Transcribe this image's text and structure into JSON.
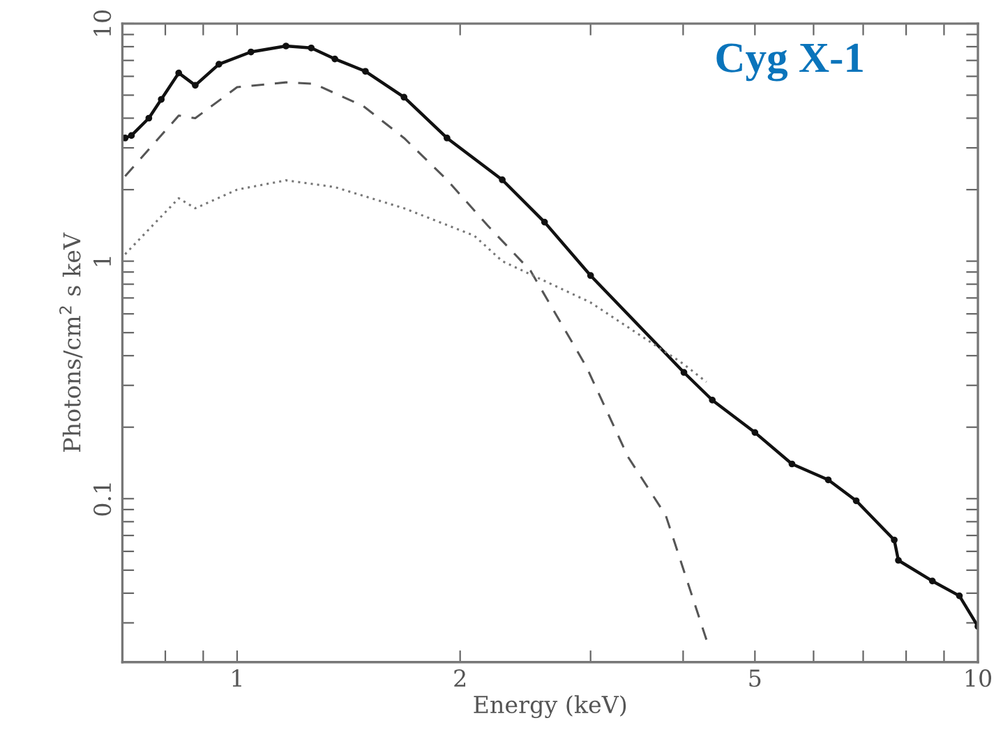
{
  "chart_data": {
    "type": "line",
    "log": "xy",
    "xlabel": "Energy (keV)",
    "ylabel": "Photons/cm$^{2}$ s keV",
    "annotations": [
      "Cyg X-1"
    ],
    "xlim": [
      0.7,
      10
    ],
    "ylim": [
      0.0205,
      10
    ],
    "xticks": [
      {
        "value": 0.8,
        "label": null
      },
      {
        "value": 0.9,
        "label": null
      },
      1,
      2,
      {
        "value": 3,
        "label": null
      },
      {
        "value": 4,
        "label": null
      },
      5,
      {
        "value": 6,
        "label": null
      },
      {
        "value": 7,
        "label": null
      },
      {
        "value": 8,
        "label": null
      },
      {
        "value": 9,
        "label": null
      },
      10
    ],
    "yticks": [
      {
        "value": 0.03,
        "label": null
      },
      {
        "value": 0.04,
        "label": null
      },
      {
        "value": 0.05,
        "label": null
      },
      {
        "value": 0.06,
        "label": null
      },
      {
        "value": 0.07,
        "label": null
      },
      {
        "value": 0.08,
        "label": null
      },
      {
        "value": 0.09,
        "label": null
      },
      0.1,
      {
        "value": 0.2,
        "label": null
      },
      {
        "value": 0.3,
        "label": null
      },
      {
        "value": 0.4,
        "label": null
      },
      {
        "value": 0.5,
        "label": null
      },
      {
        "value": 0.6,
        "label": null
      },
      {
        "value": 0.7,
        "label": null
      },
      {
        "value": 0.8,
        "label": null
      },
      {
        "value": 0.9,
        "label": null
      },
      1,
      {
        "value": 2,
        "label": null
      },
      {
        "value": 3,
        "label": null
      },
      {
        "value": 4,
        "label": null
      },
      {
        "value": 5,
        "label": null
      },
      {
        "value": 6,
        "label": null
      },
      {
        "value": 7,
        "label": null
      },
      {
        "value": 8,
        "label": null
      },
      {
        "value": 9,
        "label": null
      },
      10
    ],
    "grid": false,
    "series": [
      {
        "color": "#111111",
        "line_style": "solid",
        "marker": "circle",
        "x": [
          0.706,
          0.72,
          0.76,
          0.79,
          0.834,
          0.878,
          0.945,
          1.044,
          1.164,
          1.259,
          1.355,
          1.49,
          1.68,
          1.92,
          2.28,
          2.6,
          3.0,
          4.01,
          4.38,
          5.0,
          5.61,
          6.28,
          6.85,
          7.71,
          7.81,
          8.68,
          9.44,
          10.0
        ],
        "values": [
          3.3,
          3.38,
          4.0,
          4.8,
          6.2,
          5.5,
          6.75,
          7.6,
          8.05,
          7.9,
          7.1,
          6.3,
          4.9,
          3.3,
          2.2,
          1.46,
          0.87,
          0.34,
          0.26,
          0.19,
          0.14,
          0.12,
          0.098,
          0.067,
          0.055,
          0.045,
          0.039,
          0.029
        ]
      },
      {
        "color": "#555555",
        "line_style": "dashed",
        "marker": "none",
        "x": [
          0.706,
          0.834,
          0.878,
          1.0,
          1.164,
          1.27,
          1.48,
          1.68,
          1.92,
          2.18,
          2.49,
          2.96,
          3.37,
          3.79,
          4.32
        ],
        "values": [
          2.28,
          4.1,
          4.0,
          5.4,
          5.66,
          5.58,
          4.5,
          3.3,
          2.2,
          1.41,
          0.91,
          0.36,
          0.15,
          0.085,
          0.0244
        ]
      },
      {
        "color": "#777777",
        "line_style": "dotted",
        "marker": "none",
        "x": [
          0.706,
          0.834,
          0.878,
          1.0,
          1.164,
          1.355,
          1.68,
          2.09,
          2.28,
          3.0,
          4.0,
          4.3
        ],
        "values": [
          1.07,
          1.84,
          1.67,
          2.0,
          2.19,
          2.05,
          1.67,
          1.28,
          1.0,
          0.67,
          0.37,
          0.31
        ]
      }
    ]
  }
}
